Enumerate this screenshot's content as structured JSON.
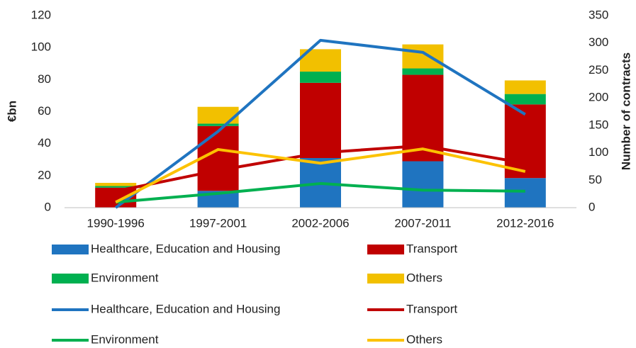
{
  "chart_data": {
    "type": "bar-line",
    "ylabel": "€bn",
    "y2label": "Number of contracts",
    "categories": [
      "1990-1996",
      "1997-2001",
      "2002-2006",
      "2007-2011",
      "2012-2016"
    ],
    "ylim": [
      0,
      120
    ],
    "yticks": [
      0,
      20,
      40,
      60,
      80,
      100,
      120
    ],
    "y2lim": [
      0,
      350
    ],
    "y2ticks": [
      0,
      50,
      100,
      150,
      200,
      250,
      300,
      350
    ],
    "series": [
      {
        "name": "Healthcare, Education and Housing",
        "color": "#1f74c0",
        "values": [
          0,
          10.5,
          31,
          29,
          18.5
        ]
      },
      {
        "name": "Transport",
        "color": "#c00000",
        "values": [
          12.5,
          40.5,
          47,
          54,
          46
        ]
      },
      {
        "name": "Environment",
        "color": "#00b050",
        "values": [
          1,
          1.5,
          7,
          4,
          6.5
        ]
      },
      {
        "name": "Others",
        "color": "#f2c000",
        "values": [
          2,
          10.5,
          14,
          15,
          8.5
        ]
      }
    ],
    "line_series": [
      {
        "name": "Healthcare, Education and Housing",
        "color": "#1f74c0",
        "axis": "y2",
        "values": [
          0,
          139,
          305,
          283,
          170
        ]
      },
      {
        "name": "Transport",
        "color": "#c00000",
        "axis": "y2",
        "values": [
          30,
          68,
          100,
          113,
          81
        ]
      },
      {
        "name": "Environment",
        "color": "#00b050",
        "axis": "y2",
        "values": [
          10,
          26,
          44,
          32,
          30
        ]
      },
      {
        "name": "Others",
        "color": "#fcc200",
        "axis": "y2",
        "values": [
          10,
          106,
          81,
          107,
          66
        ]
      }
    ]
  }
}
